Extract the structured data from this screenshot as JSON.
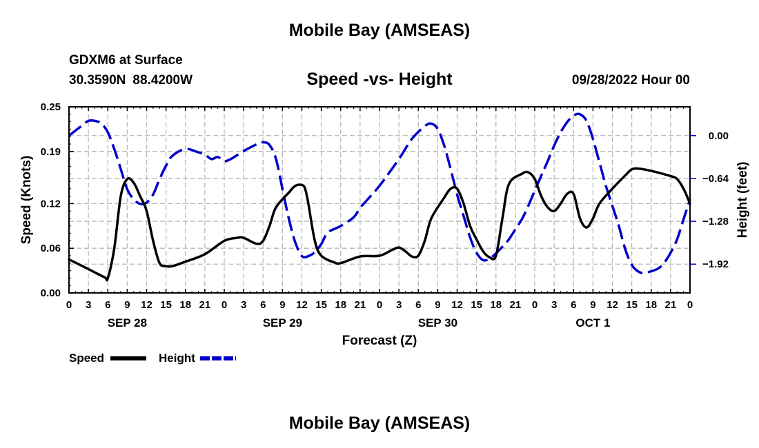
{
  "header": {
    "title": "Mobile Bay (AMSEAS)",
    "station": "GDXM6 at Surface",
    "lat": "30.3590N",
    "lon": "88.4200W",
    "subtitle": "Speed -vs- Height",
    "run_time": "09/28/2022 Hour 00"
  },
  "footer": {
    "title": "Mobile Bay (AMSEAS)"
  },
  "chart_data": {
    "type": "line",
    "title": "Speed -vs- Height",
    "xlabel": "Forecast (Z)",
    "ylabel_left": "Speed (Knots)",
    "ylabel_right": "Height (feet)",
    "x_unit": "forecast hour",
    "xlim": [
      0,
      96
    ],
    "ylim_left": [
      0,
      0.25
    ],
    "ylim_right": [
      -2.35,
      0.43
    ],
    "grid": true,
    "left_ticks": [
      0.0,
      0.06,
      0.12,
      0.19,
      0.25
    ],
    "left_tick_labels": [
      "0.00",
      "0.06",
      "0.12",
      "0.19",
      "0.25"
    ],
    "right_ticks": [
      0.0,
      -0.64,
      -1.28,
      -1.92
    ],
    "right_tick_labels": [
      "0.00",
      "−0.64",
      "−1.28",
      "−1.92"
    ],
    "x_tick_hours": [
      0,
      3,
      6,
      9,
      12,
      15,
      18,
      21,
      24,
      27,
      30,
      33,
      36,
      39,
      42,
      45,
      48,
      51,
      54,
      57,
      60,
      63,
      66,
      69,
      72,
      75,
      78,
      81,
      84,
      87,
      90,
      93,
      96
    ],
    "x_tick_labels": [
      "0",
      "3",
      "6",
      "9",
      "12",
      "15",
      "18",
      "21",
      "0",
      "3",
      "6",
      "9",
      "12",
      "15",
      "18",
      "21",
      "0",
      "3",
      "6",
      "9",
      "12",
      "15",
      "18",
      "21",
      "0",
      "3",
      "6",
      "9",
      "12",
      "15",
      "18",
      "21",
      "0"
    ],
    "date_labels": [
      {
        "hour": 9,
        "label": "SEP 28"
      },
      {
        "hour": 33,
        "label": "SEP 29"
      },
      {
        "hour": 57,
        "label": "SEP 30"
      },
      {
        "hour": 81,
        "label": "OCT 1"
      }
    ],
    "legend": [
      {
        "name": "Speed",
        "color": "#000000",
        "style": "solid"
      },
      {
        "name": "Height",
        "color": "#0000cc",
        "style": "dashed"
      }
    ],
    "legend_position": "bottom-left",
    "series": [
      {
        "name": "Speed",
        "axis": "left",
        "color": "#000000",
        "style": "solid",
        "points": [
          [
            0,
            0.045
          ],
          [
            3,
            0.032
          ],
          [
            5.5,
            0.021
          ],
          [
            6,
            0.02
          ],
          [
            7,
            0.06
          ],
          [
            8,
            0.13
          ],
          [
            9,
            0.153
          ],
          [
            10,
            0.148
          ],
          [
            11,
            0.13
          ],
          [
            12,
            0.11
          ],
          [
            13,
            0.07
          ],
          [
            14,
            0.04
          ],
          [
            15,
            0.036
          ],
          [
            16,
            0.036
          ],
          [
            18,
            0.042
          ],
          [
            21,
            0.052
          ],
          [
            24,
            0.07
          ],
          [
            26,
            0.074
          ],
          [
            27,
            0.074
          ],
          [
            29,
            0.066
          ],
          [
            30,
            0.07
          ],
          [
            31,
            0.09
          ],
          [
            32,
            0.115
          ],
          [
            34,
            0.135
          ],
          [
            35,
            0.144
          ],
          [
            36,
            0.145
          ],
          [
            36.5,
            0.14
          ],
          [
            37,
            0.12
          ],
          [
            38,
            0.07
          ],
          [
            39,
            0.05
          ],
          [
            41,
            0.041
          ],
          [
            42,
            0.04
          ],
          [
            45,
            0.049
          ],
          [
            48,
            0.05
          ],
          [
            50,
            0.058
          ],
          [
            51,
            0.061
          ],
          [
            52,
            0.056
          ],
          [
            53,
            0.049
          ],
          [
            54,
            0.05
          ],
          [
            55,
            0.07
          ],
          [
            56,
            0.1
          ],
          [
            58,
            0.128
          ],
          [
            59,
            0.14
          ],
          [
            60,
            0.14
          ],
          [
            61,
            0.12
          ],
          [
            62,
            0.09
          ],
          [
            63,
            0.072
          ],
          [
            64,
            0.056
          ],
          [
            65,
            0.048
          ],
          [
            66,
            0.05
          ],
          [
            67,
            0.1
          ],
          [
            68,
            0.146
          ],
          [
            70,
            0.16
          ],
          [
            71,
            0.162
          ],
          [
            72,
            0.153
          ],
          [
            73,
            0.13
          ],
          [
            74,
            0.115
          ],
          [
            75,
            0.11
          ],
          [
            76,
            0.12
          ],
          [
            77,
            0.133
          ],
          [
            78,
            0.133
          ],
          [
            79,
            0.1
          ],
          [
            80,
            0.088
          ],
          [
            81,
            0.1
          ],
          [
            82,
            0.12
          ],
          [
            84,
            0.14
          ],
          [
            86,
            0.158
          ],
          [
            87,
            0.166
          ],
          [
            88,
            0.167
          ],
          [
            90,
            0.164
          ],
          [
            93,
            0.157
          ],
          [
            94,
            0.153
          ],
          [
            95,
            0.14
          ],
          [
            96,
            0.12
          ]
        ]
      },
      {
        "name": "Height",
        "axis": "right",
        "color": "#0000cc",
        "style": "dashed",
        "points": [
          [
            0,
            0.0
          ],
          [
            2,
            0.15
          ],
          [
            3,
            0.22
          ],
          [
            4,
            0.22
          ],
          [
            5,
            0.18
          ],
          [
            6,
            0.05
          ],
          [
            7,
            -0.2
          ],
          [
            8,
            -0.5
          ],
          [
            9,
            -0.8
          ],
          [
            10,
            -0.95
          ],
          [
            11,
            -1.02
          ],
          [
            12,
            -1.0
          ],
          [
            13,
            -0.88
          ],
          [
            14,
            -0.65
          ],
          [
            15,
            -0.45
          ],
          [
            16,
            -0.3
          ],
          [
            18,
            -0.2
          ],
          [
            20,
            -0.25
          ],
          [
            21,
            -0.28
          ],
          [
            22,
            -0.35
          ],
          [
            23,
            -0.32
          ],
          [
            24,
            -0.38
          ],
          [
            25,
            -0.35
          ],
          [
            27,
            -0.23
          ],
          [
            29,
            -0.13
          ],
          [
            30,
            -0.1
          ],
          [
            31,
            -0.14
          ],
          [
            32,
            -0.35
          ],
          [
            33,
            -0.8
          ],
          [
            34,
            -1.25
          ],
          [
            35,
            -1.6
          ],
          [
            36,
            -1.8
          ],
          [
            37,
            -1.8
          ],
          [
            38,
            -1.74
          ],
          [
            39,
            -1.62
          ],
          [
            40,
            -1.45
          ],
          [
            42,
            -1.35
          ],
          [
            44,
            -1.22
          ],
          [
            45,
            -1.08
          ],
          [
            46,
            -0.97
          ],
          [
            48,
            -0.75
          ],
          [
            51,
            -0.35
          ],
          [
            53,
            -0.05
          ],
          [
            55,
            0.14
          ],
          [
            56,
            0.18
          ],
          [
            57,
            0.1
          ],
          [
            58,
            -0.15
          ],
          [
            59,
            -0.5
          ],
          [
            60,
            -0.88
          ],
          [
            61,
            -1.2
          ],
          [
            62,
            -1.52
          ],
          [
            63,
            -1.75
          ],
          [
            64,
            -1.86
          ],
          [
            65,
            -1.84
          ],
          [
            66,
            -1.76
          ],
          [
            67,
            -1.66
          ],
          [
            68,
            -1.55
          ],
          [
            69,
            -1.4
          ],
          [
            70,
            -1.25
          ],
          [
            71,
            -1.05
          ],
          [
            72,
            -0.82
          ],
          [
            73,
            -0.6
          ],
          [
            74,
            -0.38
          ],
          [
            75,
            -0.15
          ],
          [
            76,
            0.05
          ],
          [
            77,
            0.2
          ],
          [
            78,
            0.3
          ],
          [
            79,
            0.32
          ],
          [
            80,
            0.22
          ],
          [
            81,
            -0.05
          ],
          [
            82,
            -0.4
          ],
          [
            83,
            -0.75
          ],
          [
            84,
            -1.05
          ],
          [
            85,
            -1.35
          ],
          [
            86,
            -1.7
          ],
          [
            87,
            -1.93
          ],
          [
            88,
            -2.03
          ],
          [
            89,
            -2.05
          ],
          [
            91,
            -1.99
          ],
          [
            92,
            -1.9
          ],
          [
            93,
            -1.75
          ],
          [
            94,
            -1.55
          ],
          [
            95,
            -1.25
          ],
          [
            96,
            -0.95
          ]
        ]
      }
    ]
  }
}
